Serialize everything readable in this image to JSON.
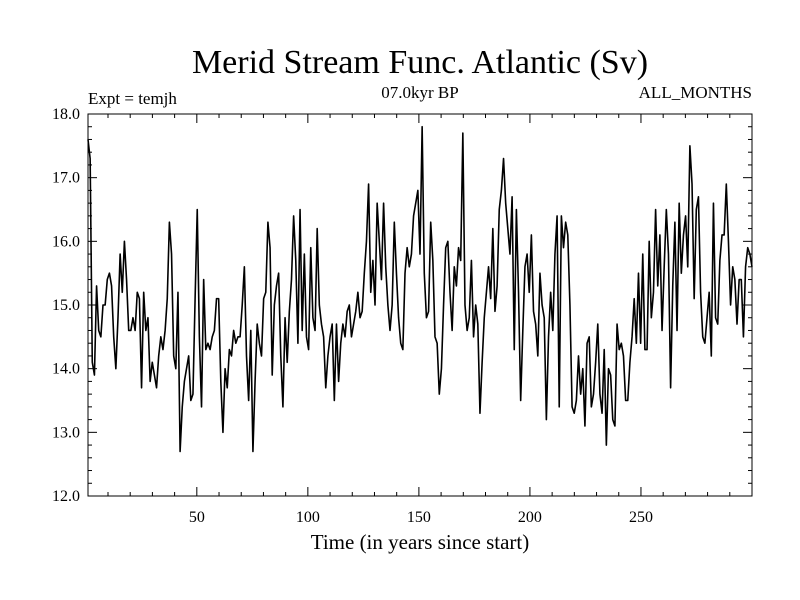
{
  "chart_data": {
    "type": "line",
    "title": "Merid Stream Func. Atlantic (Sv)",
    "subtitle_left": "Expt = temjh",
    "subtitle_center": "07.0kyr BP",
    "subtitle_right": "ALL_MONTHS",
    "xlabel": "Time (in years since start)",
    "ylabel": "",
    "xlim": [
      1,
      300
    ],
    "ylim": [
      12.0,
      18.0
    ],
    "xticks": [
      50,
      100,
      150,
      200,
      250
    ],
    "yticks": [
      "12.0",
      "13.0",
      "14.0",
      "15.0",
      "16.0",
      "17.0",
      "18.0"
    ],
    "grid": false,
    "series": [
      {
        "name": "Merid Stream Func. Atlantic",
        "color": "#000000",
        "values": [
          17.6,
          17.3,
          14.1,
          13.9,
          15.3,
          14.6,
          14.5,
          15.0,
          15.0,
          15.4,
          15.5,
          15.3,
          14.5,
          14.0,
          14.8,
          15.8,
          15.2,
          16.0,
          15.4,
          14.6,
          14.6,
          14.8,
          14.6,
          15.2,
          15.1,
          13.7,
          15.2,
          14.6,
          14.8,
          13.8,
          14.1,
          13.9,
          13.7,
          14.2,
          14.5,
          14.3,
          14.6,
          15.1,
          16.3,
          15.8,
          14.2,
          14.0,
          15.2,
          12.7,
          13.4,
          13.8,
          14.0,
          14.2,
          13.5,
          13.6,
          15.1,
          16.5,
          14.5,
          13.4,
          15.4,
          14.3,
          14.4,
          14.3,
          14.5,
          14.6,
          15.1,
          15.1,
          13.8,
          13.0,
          14.0,
          13.7,
          14.3,
          14.2,
          14.6,
          14.4,
          14.5,
          14.5,
          15.0,
          15.6,
          14.2,
          13.5,
          14.6,
          12.7,
          13.8,
          14.7,
          14.4,
          14.2,
          15.1,
          15.2,
          16.3,
          15.9,
          13.9,
          15.0,
          15.3,
          15.5,
          14.2,
          13.4,
          14.8,
          14.1,
          14.9,
          15.4,
          16.4,
          15.7,
          14.4,
          16.5,
          14.6,
          15.8,
          14.5,
          14.3,
          15.9,
          14.8,
          14.6,
          16.2,
          15.0,
          14.7,
          14.5,
          13.7,
          14.2,
          14.5,
          14.7,
          13.5,
          14.7,
          13.8,
          14.4,
          14.7,
          14.5,
          14.9,
          15.0,
          14.5,
          14.7,
          14.9,
          15.2,
          14.8,
          14.9,
          15.5,
          16.0,
          16.9,
          15.2,
          15.7,
          15.0,
          16.6,
          16.0,
          15.4,
          16.6,
          15.6,
          15.0,
          14.6,
          15.0,
          16.3,
          15.5,
          14.8,
          14.4,
          14.3,
          15.5,
          15.9,
          15.6,
          15.8,
          16.4,
          16.6,
          16.8,
          15.8,
          17.8,
          15.5,
          14.8,
          14.9,
          16.3,
          15.7,
          14.5,
          14.4,
          13.6,
          14.0,
          15.0,
          15.9,
          16.0,
          15.2,
          14.6,
          15.6,
          15.3,
          15.9,
          15.7,
          17.7,
          15.0,
          14.6,
          14.8,
          15.7,
          14.5,
          15.0,
          14.7,
          13.3,
          14.1,
          14.8,
          15.2,
          15.6,
          15.1,
          16.2,
          14.9,
          15.3,
          16.5,
          16.8,
          17.3,
          16.6,
          16.2,
          15.8,
          16.7,
          14.3,
          16.5,
          15.2,
          13.5,
          14.6,
          15.6,
          15.8,
          15.2,
          16.1,
          14.9,
          14.7,
          14.2,
          15.5,
          15.0,
          14.8,
          13.2,
          14.5,
          15.2,
          14.6,
          15.8,
          16.4,
          13.4,
          16.4,
          15.9,
          16.3,
          16.1,
          15.0,
          13.4,
          13.3,
          13.5,
          14.2,
          13.6,
          14.0,
          13.1,
          14.4,
          14.5,
          13.4,
          13.6,
          14.1,
          14.7,
          13.6,
          13.3,
          14.3,
          12.8,
          14.0,
          13.9,
          13.2,
          13.1,
          14.7,
          14.3,
          14.4,
          14.2,
          13.5,
          13.5,
          14.1,
          14.5,
          15.1,
          14.4,
          15.5,
          14.4,
          15.8,
          14.3,
          14.3,
          16.0,
          14.8,
          15.2,
          16.5,
          15.3,
          16.1,
          14.6,
          15.6,
          16.5,
          15.8,
          13.7,
          15.3,
          16.3,
          14.6,
          16.6,
          15.5,
          16.1,
          16.4,
          15.6,
          17.5,
          16.9,
          15.1,
          16.5,
          16.7,
          15.2,
          14.5,
          14.4,
          14.8,
          15.2,
          14.2,
          16.6,
          14.8,
          14.7,
          15.7,
          16.1,
          16.1,
          16.9,
          16.0,
          15.0,
          15.6,
          15.4,
          14.7,
          15.4,
          15.4,
          14.5,
          15.6,
          15.9,
          15.8,
          15.6
        ]
      }
    ]
  }
}
